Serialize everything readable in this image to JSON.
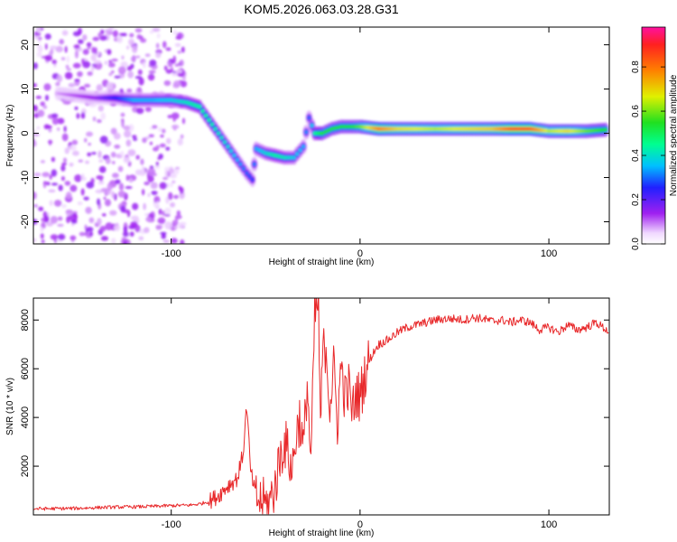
{
  "figure": {
    "title": "KOM5.2026.063.03.28.G31"
  },
  "colors": {
    "snr_line": "#e8282a",
    "frame": "#000000",
    "background": "#ffffff"
  },
  "chart_data": [
    {
      "type": "heatmap",
      "name": "spectrogram",
      "xlabel": "Height of straight line (km)",
      "ylabel": "Frequency (Hz)",
      "xlim": [
        -173,
        132
      ],
      "ylim": [
        -25,
        24
      ],
      "xticks": [
        -100,
        0,
        100
      ],
      "yticks": [
        -20,
        -10,
        0,
        10,
        20
      ],
      "colorbar": {
        "label": "Normalized spectral amplitude",
        "range": [
          0,
          0.98
        ],
        "ticks": [
          "0.0",
          "0.2",
          "0.4",
          "0.6",
          "0.8"
        ],
        "colormap": "rainbow (white-violet-blue-cyan-green-yellow-orange-red-magenta)"
      },
      "ridge": [
        {
          "x": -160,
          "y": 9.0,
          "a": 0.08
        },
        {
          "x": -150,
          "y": 8.5,
          "a": 0.12
        },
        {
          "x": -140,
          "y": 8.0,
          "a": 0.15
        },
        {
          "x": -130,
          "y": 8.0,
          "a": 0.25
        },
        {
          "x": -120,
          "y": 7.5,
          "a": 0.35
        },
        {
          "x": -110,
          "y": 7.5,
          "a": 0.35
        },
        {
          "x": -100,
          "y": 7.5,
          "a": 0.38
        },
        {
          "x": -92,
          "y": 7.0,
          "a": 0.42
        },
        {
          "x": -85,
          "y": 6.0,
          "a": 0.45
        },
        {
          "x": -80,
          "y": 3.0,
          "a": 0.45
        },
        {
          "x": -75,
          "y": 0.0,
          "a": 0.42
        },
        {
          "x": -70,
          "y": -3.0,
          "a": 0.4
        },
        {
          "x": -65,
          "y": -6.0,
          "a": 0.35
        },
        {
          "x": -60,
          "y": -9.0,
          "a": 0.3
        },
        {
          "x": -57,
          "y": -10.5,
          "a": 0.28
        },
        {
          "x": -55,
          "y": -3.5,
          "a": 0.35
        },
        {
          "x": -50,
          "y": -4.5,
          "a": 0.4
        },
        {
          "x": -45,
          "y": -5.0,
          "a": 0.45
        },
        {
          "x": -40,
          "y": -5.5,
          "a": 0.42
        },
        {
          "x": -35,
          "y": -5.5,
          "a": 0.38
        },
        {
          "x": -30,
          "y": -3.0,
          "a": 0.35
        },
        {
          "x": -27,
          "y": 3.5,
          "a": 0.3
        },
        {
          "x": -24,
          "y": 0.0,
          "a": 0.45
        },
        {
          "x": -20,
          "y": 0.0,
          "a": 0.55
        },
        {
          "x": -15,
          "y": 1.0,
          "a": 0.55
        },
        {
          "x": -10,
          "y": 1.5,
          "a": 0.55
        },
        {
          "x": -5,
          "y": 1.5,
          "a": 0.55
        },
        {
          "x": 0,
          "y": 1.5,
          "a": 0.6
        },
        {
          "x": 10,
          "y": 1.0,
          "a": 0.8
        },
        {
          "x": 20,
          "y": 1.0,
          "a": 0.7
        },
        {
          "x": 30,
          "y": 1.0,
          "a": 0.68
        },
        {
          "x": 40,
          "y": 1.0,
          "a": 0.65
        },
        {
          "x": 50,
          "y": 1.0,
          "a": 0.68
        },
        {
          "x": 60,
          "y": 1.0,
          "a": 0.7
        },
        {
          "x": 70,
          "y": 1.0,
          "a": 0.72
        },
        {
          "x": 80,
          "y": 1.0,
          "a": 0.85
        },
        {
          "x": 90,
          "y": 1.0,
          "a": 0.85
        },
        {
          "x": 100,
          "y": 0.5,
          "a": 0.65
        },
        {
          "x": 110,
          "y": 0.5,
          "a": 0.7
        },
        {
          "x": 120,
          "y": 0.5,
          "a": 0.6
        },
        {
          "x": 130,
          "y": 0.8,
          "a": 0.55
        }
      ]
    },
    {
      "type": "line",
      "name": "snr",
      "xlabel": "Height of straight line (km)",
      "ylabel": "SNR (10 * v/v)",
      "xlim": [
        -173,
        132
      ],
      "ylim": [
        0,
        8900
      ],
      "xticks": [
        -100,
        0,
        100
      ],
      "yticks": [
        2000,
        4000,
        6000,
        8000
      ],
      "series": [
        {
          "name": "SNR",
          "x": [
            -173,
            -160,
            -150,
            -140,
            -130,
            -120,
            -110,
            -100,
            -90,
            -85,
            -80,
            -75,
            -70,
            -65,
            -62,
            -60,
            -58,
            -55,
            -52,
            -50,
            -48,
            -45,
            -42,
            -40,
            -38,
            -36,
            -34,
            -32,
            -30,
            -28,
            -26,
            -24,
            -22,
            -21,
            -20,
            -18,
            -16,
            -14,
            -12,
            -10,
            -8,
            -6,
            -4,
            -2,
            0,
            2,
            4,
            6,
            8,
            10,
            15,
            20,
            25,
            30,
            35,
            40,
            45,
            50,
            55,
            60,
            65,
            70,
            75,
            80,
            85,
            90,
            95,
            100,
            105,
            110,
            115,
            120,
            125,
            132
          ],
          "y": [
            250,
            260,
            270,
            300,
            320,
            330,
            350,
            380,
            400,
            450,
            550,
            800,
            1200,
            1500,
            2500,
            4500,
            1800,
            700,
            500,
            400,
            500,
            1200,
            2500,
            3000,
            2500,
            1800,
            3200,
            4000,
            2600,
            5500,
            2000,
            8200,
            8600,
            3000,
            6500,
            7000,
            4500,
            6000,
            3800,
            6200,
            4800,
            5200,
            4200,
            5000,
            4800,
            5600,
            6200,
            6500,
            6800,
            7000,
            7200,
            7500,
            7700,
            7800,
            7900,
            8000,
            8050,
            8050,
            8000,
            8100,
            8050,
            7950,
            8000,
            7900,
            8000,
            7900,
            7600,
            7700,
            7500,
            7800,
            7600,
            7700,
            7900,
            7500
          ]
        }
      ]
    }
  ]
}
